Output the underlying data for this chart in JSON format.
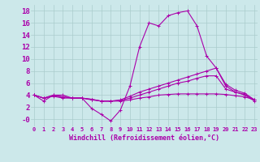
{
  "background_color": "#cce8ea",
  "grid_color": "#aacccc",
  "line_color": "#aa00aa",
  "xlim": [
    -0.3,
    23.3
  ],
  "ylim": [
    -1.2,
    19.0
  ],
  "ytick_vals": [
    0,
    2,
    4,
    6,
    8,
    10,
    12,
    14,
    16,
    18
  ],
  "ytick_labels": [
    "-0",
    "2",
    "4",
    "6",
    "8",
    "10",
    "12",
    "14",
    "16",
    "18"
  ],
  "xtick_vals": [
    0,
    1,
    2,
    3,
    4,
    5,
    6,
    7,
    8,
    9,
    10,
    11,
    12,
    13,
    14,
    15,
    16,
    17,
    18,
    19,
    20,
    21,
    22,
    23
  ],
  "xlabel": "Windchill (Refroidissement éolien,°C)",
  "lines": [
    [
      4.0,
      3.0,
      4.0,
      4.0,
      3.5,
      3.5,
      1.8,
      0.8,
      -0.3,
      1.5,
      5.5,
      12.0,
      16.0,
      15.5,
      17.2,
      17.7,
      18.0,
      15.5,
      10.5,
      8.5,
      5.5,
      4.5,
      4.0,
      3.0
    ],
    [
      4.0,
      3.5,
      4.0,
      3.7,
      3.5,
      3.5,
      3.3,
      3.0,
      3.0,
      3.2,
      3.8,
      4.5,
      5.0,
      5.5,
      6.0,
      6.5,
      7.0,
      7.5,
      8.0,
      8.5,
      5.8,
      4.8,
      4.3,
      3.2
    ],
    [
      4.0,
      3.5,
      3.8,
      3.5,
      3.5,
      3.5,
      3.3,
      3.0,
      3.0,
      3.0,
      3.2,
      3.5,
      3.7,
      4.0,
      4.1,
      4.2,
      4.2,
      4.2,
      4.2,
      4.2,
      4.1,
      3.9,
      3.7,
      3.2
    ],
    [
      4.0,
      3.5,
      3.9,
      3.7,
      3.5,
      3.5,
      3.2,
      3.0,
      3.0,
      3.1,
      3.5,
      4.0,
      4.5,
      5.0,
      5.5,
      6.0,
      6.3,
      6.8,
      7.2,
      7.2,
      5.0,
      4.5,
      4.1,
      3.2
    ]
  ]
}
